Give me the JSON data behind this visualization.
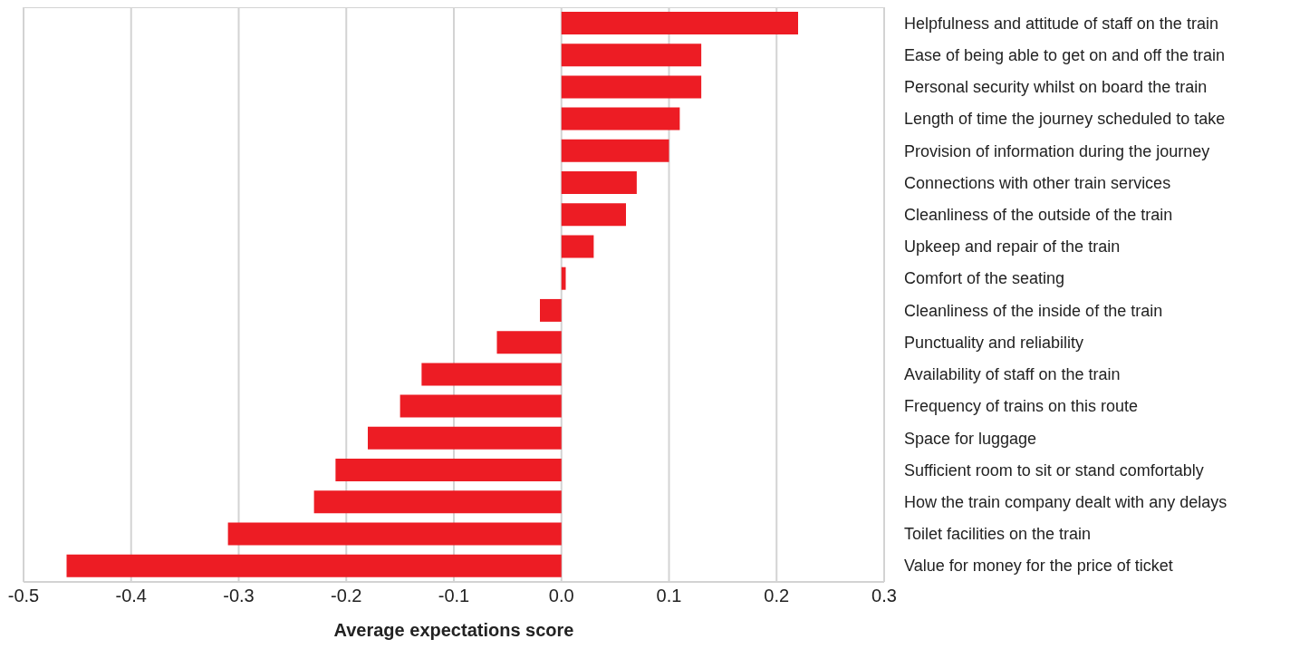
{
  "chart_data": {
    "type": "bar",
    "orientation": "horizontal",
    "xlabel": "Average expectations score",
    "categories": [
      "Helpfulness and attitude of staff on the train",
      "Ease of being able to get on and off the train",
      "Personal security whilst on board the train",
      "Length of time the journey scheduled to take",
      "Provision of information during the journey",
      "Connections with other train services",
      "Cleanliness of the outside of the train",
      "Upkeep and repair of the train",
      "Comfort of the seating",
      "Cleanliness of the inside of the train",
      "Punctuality and reliability",
      "Availability of staff on the train",
      "Frequency of trains on this route",
      "Space for luggage",
      "Sufficient room to sit or stand comfortably",
      "How the train company dealt with any delays",
      "Toilet facilities on the train",
      "Value for money for the price of ticket"
    ],
    "values": [
      0.22,
      0.13,
      0.13,
      0.11,
      0.1,
      0.07,
      0.06,
      0.03,
      0.004,
      -0.02,
      -0.06,
      -0.13,
      -0.15,
      -0.18,
      -0.21,
      -0.23,
      -0.31,
      -0.46
    ],
    "color": "#ed1c24",
    "xlim": [
      -0.5,
      0.3
    ],
    "xticks": [
      {
        "value": -0.5,
        "label": "-0.5"
      },
      {
        "value": -0.4,
        "label": "-0.4"
      },
      {
        "value": -0.3,
        "label": "-0.3"
      },
      {
        "value": -0.2,
        "label": "-0.2"
      },
      {
        "value": -0.1,
        "label": "-0.1"
      },
      {
        "value": 0,
        "label": "0.0"
      },
      {
        "value": 0.1,
        "label": "0.1"
      },
      {
        "value": 0.2,
        "label": "0.2"
      },
      {
        "value": 0.3,
        "label": "0.3"
      }
    ],
    "grid": "x",
    "legend": false
  }
}
